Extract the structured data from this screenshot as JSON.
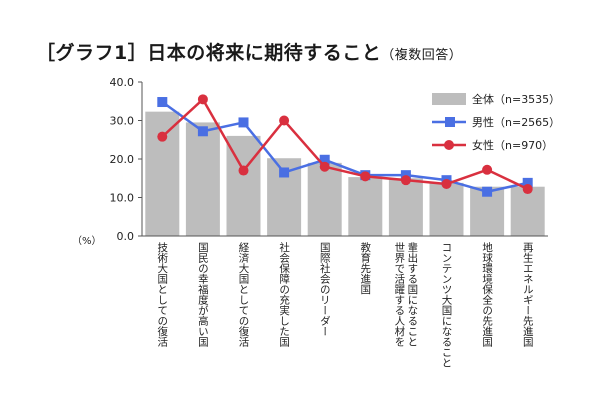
{
  "title": "［グラフ1］日本の将来に期待すること",
  "subtitle": "（複数回答）",
  "chart_data": {
    "type": "bar",
    "ylabel": "（%）",
    "ylim": [
      0,
      40
    ],
    "yticks": [
      "0.0",
      "10.0",
      "20.0",
      "30.0",
      "40.0"
    ],
    "grid": false,
    "legend_position": "top-right",
    "categories": [
      "技術大国としての復活",
      "国民の幸福度が高い国",
      "経済大国としての復活",
      "社会保障の充実した国",
      "国際社会のリーダー",
      "教育先進国",
      "輩出する国になること 世界で活躍する人材を",
      "コンテンツ大国になること",
      "地球環境保全の先進国",
      "再生エネルギー先進国"
    ],
    "series": [
      {
        "name": "全体（n=3535）",
        "kind": "bar",
        "color": "#bdbdbd",
        "values": [
          32.3,
          29.5,
          26.0,
          20.2,
          19.0,
          15.3,
          15.0,
          13.8,
          12.8,
          12.8
        ]
      },
      {
        "name": "男性（n=2565）",
        "kind": "line",
        "color": "#4a6fe3",
        "values": [
          34.8,
          27.2,
          29.5,
          16.5,
          19.8,
          15.8,
          15.8,
          14.5,
          11.5,
          13.8
        ]
      },
      {
        "name": "女性（n=970）",
        "kind": "line",
        "color": "#d9303f",
        "values": [
          25.8,
          35.5,
          17.0,
          30.0,
          18.0,
          15.5,
          14.5,
          13.5,
          17.2,
          12.2
        ]
      }
    ]
  }
}
